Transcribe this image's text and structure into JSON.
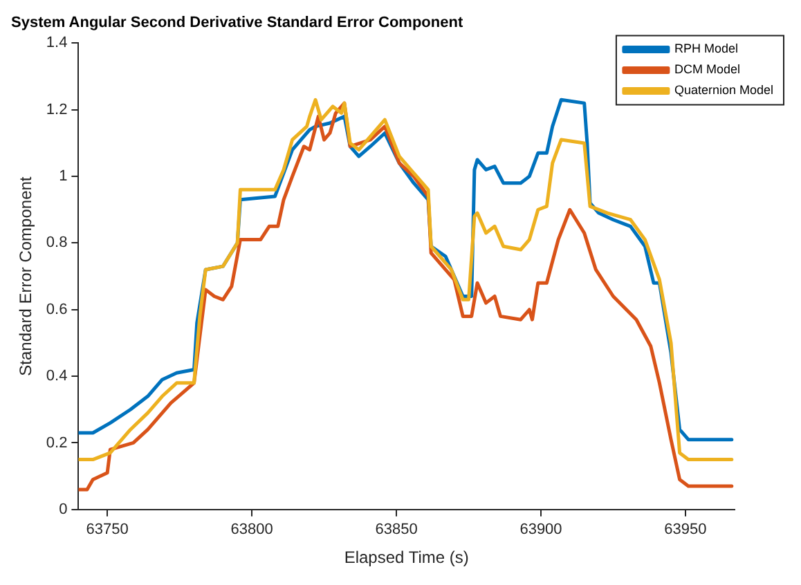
{
  "chart_data": {
    "type": "line",
    "title": "System Angular Second Derivative Standard Error Component",
    "xlabel": "Elapsed Time (s)",
    "ylabel": "Standard Error Component",
    "xlim": [
      63740,
      63967
    ],
    "xticks": [
      63750,
      63800,
      63850,
      63900,
      63950
    ],
    "ylim": [
      0,
      1.4
    ],
    "yticks": [
      0,
      0.2,
      0.4,
      0.6,
      0.8,
      1,
      1.2,
      1.4
    ],
    "grid": false,
    "legend": "top right",
    "marker": "none",
    "line_style": "solid",
    "series": [
      {
        "name": "RPH Model",
        "color": "#0072bd",
        "x": [
          63740,
          63745,
          63751,
          63758,
          63764,
          63769,
          63774,
          63780,
          63781,
          63784,
          63790,
          63795,
          63796,
          63808,
          63811,
          63814,
          63820,
          63822,
          63827,
          63832,
          63834,
          63837,
          63841,
          63846,
          63851,
          63856,
          63861,
          63862,
          63867,
          63870,
          63873,
          63876,
          63877,
          63878,
          63881,
          63884,
          63887,
          63893,
          63896,
          63899,
          63902,
          63904,
          63907,
          63915,
          63916,
          63917,
          63920,
          63925,
          63931,
          63936,
          63939,
          63941,
          63945,
          63948,
          63951,
          63966
        ],
        "values": [
          0.23,
          0.23,
          0.26,
          0.3,
          0.34,
          0.39,
          0.41,
          0.42,
          0.56,
          0.72,
          0.73,
          0.8,
          0.93,
          0.94,
          1.01,
          1.08,
          1.14,
          1.15,
          1.16,
          1.18,
          1.09,
          1.06,
          1.09,
          1.13,
          1.04,
          0.98,
          0.93,
          0.79,
          0.76,
          0.7,
          0.64,
          0.64,
          1.02,
          1.05,
          1.02,
          1.03,
          0.98,
          0.98,
          1.0,
          1.07,
          1.07,
          1.15,
          1.23,
          1.22,
          1.1,
          0.92,
          0.89,
          0.87,
          0.85,
          0.79,
          0.68,
          0.68,
          0.47,
          0.24,
          0.21,
          0.21
        ]
      },
      {
        "name": "DCM Model",
        "color": "#d95319",
        "x": [
          63740,
          63743,
          63745,
          63750,
          63751,
          63759,
          63764,
          63772,
          63780,
          63784,
          63787,
          63790,
          63793,
          63796,
          63803,
          63806,
          63809,
          63811,
          63814,
          63818,
          63820,
          63823,
          63825,
          63827,
          63829,
          63832,
          63834,
          63841,
          63846,
          63851,
          63856,
          63861,
          63862,
          63870,
          63873,
          63876,
          63878,
          63881,
          63884,
          63886,
          63893,
          63896,
          63897,
          63899,
          63902,
          63906,
          63910,
          63915,
          63919,
          63925,
          63933,
          63938,
          63941,
          63945,
          63948,
          63951,
          63966
        ],
        "values": [
          0.06,
          0.06,
          0.09,
          0.11,
          0.18,
          0.2,
          0.24,
          0.32,
          0.38,
          0.66,
          0.64,
          0.63,
          0.67,
          0.81,
          0.81,
          0.85,
          0.85,
          0.93,
          1.0,
          1.09,
          1.08,
          1.18,
          1.11,
          1.13,
          1.19,
          1.22,
          1.09,
          1.11,
          1.15,
          1.04,
          1.0,
          0.94,
          0.77,
          0.69,
          0.58,
          0.58,
          0.68,
          0.62,
          0.64,
          0.58,
          0.57,
          0.6,
          0.57,
          0.68,
          0.68,
          0.81,
          0.9,
          0.83,
          0.72,
          0.64,
          0.57,
          0.49,
          0.38,
          0.21,
          0.09,
          0.07,
          0.07
        ]
      },
      {
        "name": "Quaternion Model",
        "color": "#edb120",
        "x": [
          63740,
          63745,
          63751,
          63758,
          63764,
          63769,
          63774,
          63780,
          63782,
          63784,
          63790,
          63795,
          63796,
          63808,
          63811,
          63814,
          63819,
          63820,
          63822,
          63824,
          63828,
          63831,
          63832,
          63834,
          63837,
          63841,
          63846,
          63851,
          63856,
          63861,
          63862,
          63869,
          63873,
          63875,
          63877,
          63878,
          63881,
          63884,
          63887,
          63893,
          63896,
          63899,
          63902,
          63904,
          63907,
          63915,
          63917,
          63923,
          63931,
          63936,
          63941,
          63945,
          63948,
          63951,
          63966
        ],
        "values": [
          0.15,
          0.15,
          0.17,
          0.24,
          0.29,
          0.34,
          0.38,
          0.38,
          0.58,
          0.72,
          0.73,
          0.8,
          0.96,
          0.96,
          1.02,
          1.11,
          1.15,
          1.18,
          1.23,
          1.17,
          1.21,
          1.19,
          1.22,
          1.1,
          1.08,
          1.12,
          1.17,
          1.06,
          1.01,
          0.96,
          0.79,
          0.72,
          0.63,
          0.63,
          0.88,
          0.89,
          0.83,
          0.85,
          0.79,
          0.78,
          0.81,
          0.9,
          0.91,
          1.04,
          1.11,
          1.1,
          0.91,
          0.89,
          0.87,
          0.81,
          0.69,
          0.5,
          0.17,
          0.15,
          0.15
        ]
      }
    ]
  }
}
